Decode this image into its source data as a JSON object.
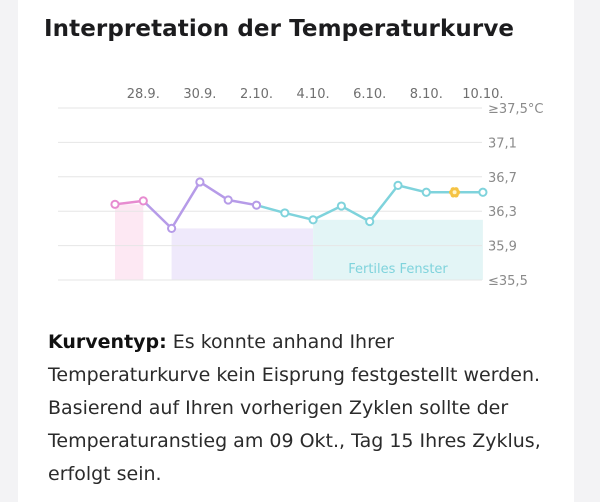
{
  "card": {
    "title": "Interpretation der Temperaturkurve",
    "description_label": "Kurventyp:",
    "description_text": " Es konnte anhand Ihrer Temperaturkurve kein Eisprung festgestellt werden. Basierend auf Ihren vorherigen Zyklen sollte der Temperaturanstieg am 09 Okt., Tag 15 Ihres Zyklus, erfolgt sein."
  },
  "chart_data": {
    "type": "line",
    "x_tick_labels": [
      "28.9.",
      "30.9.",
      "2.10.",
      "4.10.",
      "6.10.",
      "8.10.",
      "10.10."
    ],
    "y_tick_labels": [
      "≥37,5°C",
      "37,1",
      "36,7",
      "36,3",
      "35,9",
      "≤35,5"
    ],
    "y_ticks": [
      37.5,
      37.1,
      36.7,
      36.3,
      35.9,
      35.5
    ],
    "ylim": [
      35.5,
      37.5
    ],
    "x": [
      "27.9.",
      "28.9.",
      "29.9.",
      "30.9.",
      "1.10.",
      "2.10.",
      "3.10.",
      "4.10.",
      "5.10.",
      "6.10.",
      "7.10.",
      "8.10.",
      "9.10.",
      "10.10."
    ],
    "series": [
      {
        "values": [
          36.38,
          36.42,
          36.1,
          36.64,
          36.43,
          36.37,
          36.28,
          36.2,
          36.36,
          36.18,
          36.6,
          36.52,
          36.52,
          36.52
        ],
        "phases": [
          "menstruation",
          "menstruation",
          "follicular",
          "follicular",
          "follicular",
          "follicular",
          "fertile",
          "fertile",
          "fertile",
          "fertile",
          "fertile",
          "fertile",
          "fertile",
          "fertile"
        ]
      }
    ],
    "highlight_point": {
      "x": "9.10.",
      "marker": "flower-icon"
    },
    "bands": [
      {
        "from": "27.9.",
        "to": "28.9.",
        "color": "#fde8f3"
      },
      {
        "from": "29.9.",
        "to": "4.10.",
        "color": "#efe9fb"
      },
      {
        "from": "4.10.",
        "to": "10.10.",
        "color": "#e3f5f6",
        "label": "Fertiles Fenster"
      }
    ],
    "colors": {
      "menstruation": "#e78bd0",
      "follicular": "#b69be8",
      "fertile": "#7fd3dc",
      "highlight": "#f5c344"
    },
    "grid": true
  }
}
